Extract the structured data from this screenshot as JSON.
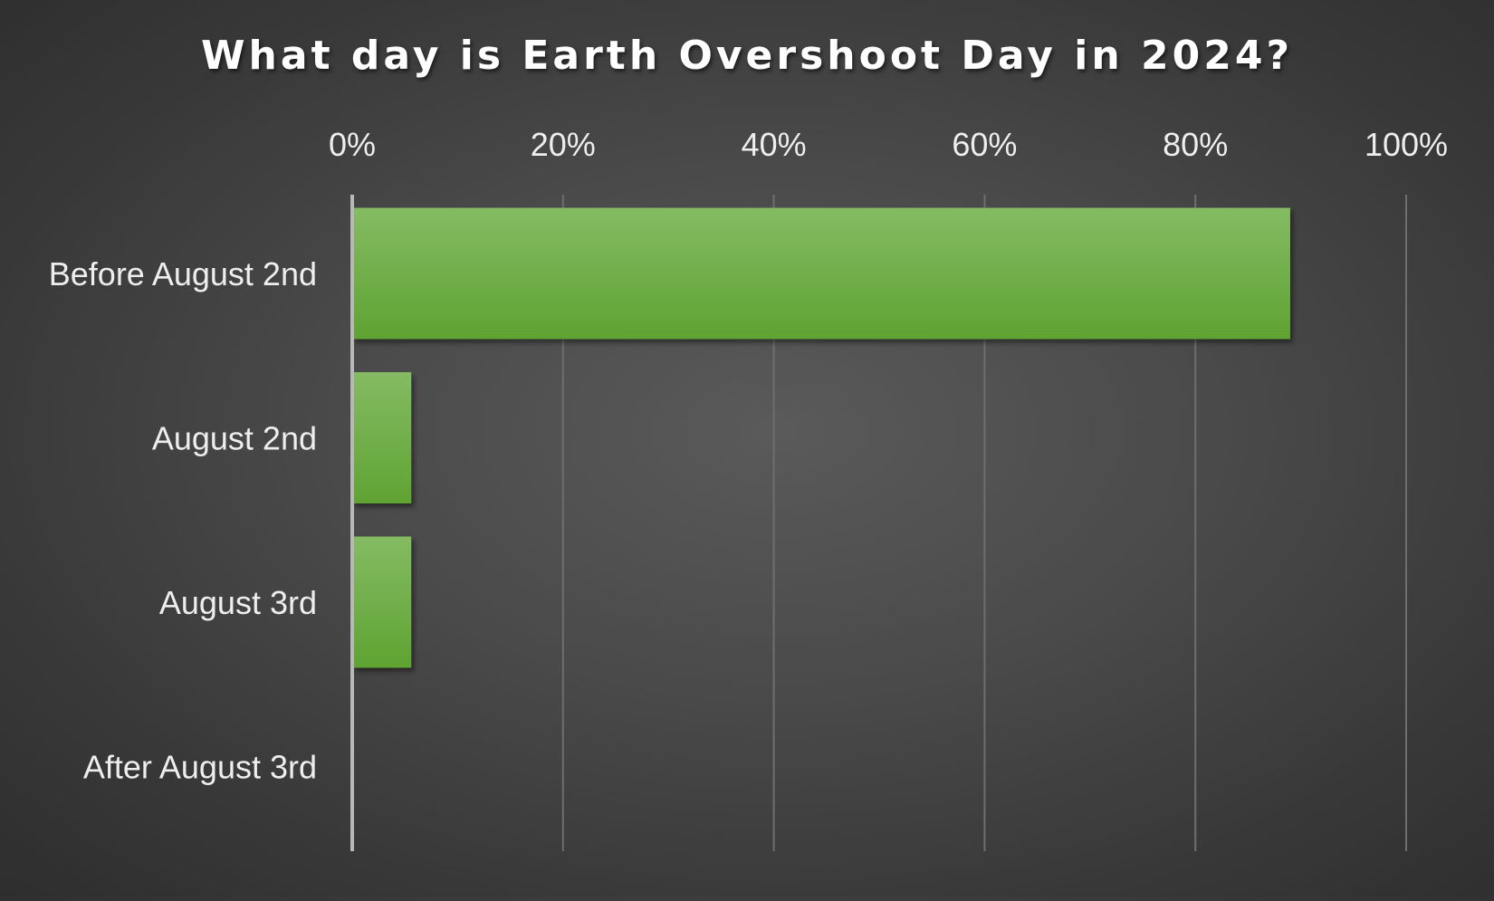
{
  "chart_data": {
    "type": "bar",
    "orientation": "horizontal",
    "title": "What day is Earth Overshoot Day in 2024?",
    "xlabel": "",
    "ylabel": "",
    "categories": [
      "Before August 2nd",
      "August 2nd",
      "August 3rd",
      "After August 3rd"
    ],
    "values": [
      89,
      5.6,
      5.6,
      0
    ],
    "value_unit": "%",
    "xlim": [
      0,
      100
    ],
    "ticks": [
      0,
      20,
      40,
      60,
      80,
      100
    ],
    "tick_labels": [
      "0%",
      "20%",
      "40%",
      "60%",
      "80%",
      "100%"
    ],
    "axis_position": "top",
    "grid": true,
    "legend": false,
    "colors": {
      "bar_top": "#84bb63",
      "bar_bottom": "#5fa332",
      "text": "#eeeeee",
      "gridline": "#6e6e6e",
      "axis": "#b8b8b8"
    }
  }
}
